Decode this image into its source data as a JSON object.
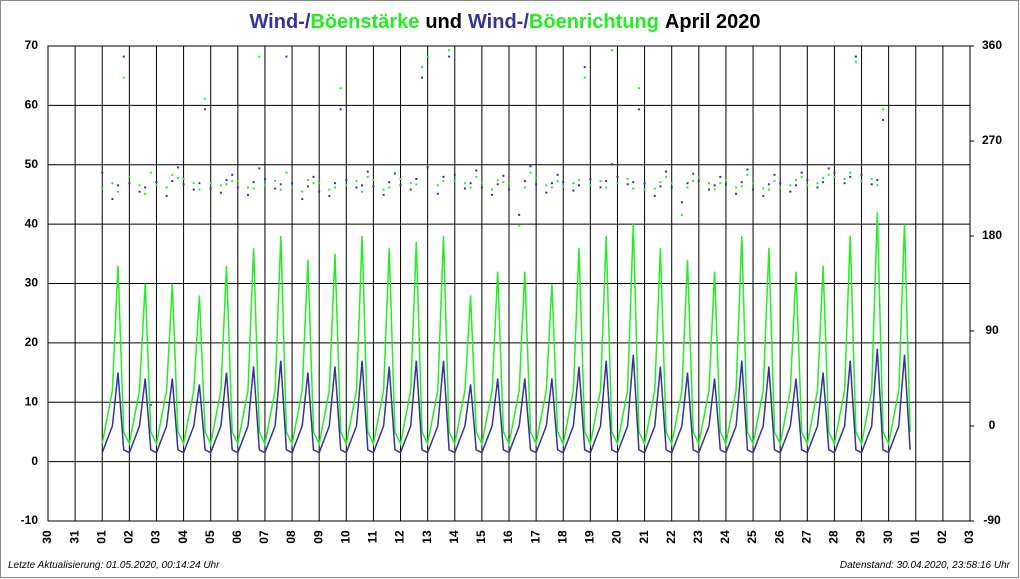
{
  "chart_data": {
    "type": "scatter-line",
    "title_parts": [
      {
        "text": "Wind-/",
        "color": "#333399"
      },
      {
        "text": "Böenstärke",
        "color": "#22ee22"
      },
      {
        "text": "und",
        "color": "#000000"
      },
      {
        "text": "Wind-/",
        "color": "#333399"
      },
      {
        "text": "Böenrichtung",
        "color": "#22ee22"
      },
      {
        "text": "April 2020",
        "color": "#000000"
      }
    ],
    "footer_left": "Letzte Aktualisierung: 01.05.2020, 00:14:24 Uhr",
    "footer_right": "Datenstand: 30.04.2020, 23:58:16 Uhr",
    "grid": true,
    "xlim": [
      0,
      34
    ],
    "xticks": [
      {
        "value": 0,
        "label": "30"
      },
      {
        "value": 1,
        "label": "31"
      },
      {
        "value": 2,
        "label": "01"
      },
      {
        "value": 3,
        "label": "02"
      },
      {
        "value": 4,
        "label": "03"
      },
      {
        "value": 5,
        "label": "04"
      },
      {
        "value": 6,
        "label": "05"
      },
      {
        "value": 7,
        "label": "06"
      },
      {
        "value": 8,
        "label": "07"
      },
      {
        "value": 9,
        "label": "08"
      },
      {
        "value": 10,
        "label": "09"
      },
      {
        "value": 11,
        "label": "10"
      },
      {
        "value": 12,
        "label": "11"
      },
      {
        "value": 13,
        "label": "12"
      },
      {
        "value": 14,
        "label": "13"
      },
      {
        "value": 15,
        "label": "14"
      },
      {
        "value": 16,
        "label": "15"
      },
      {
        "value": 17,
        "label": "16"
      },
      {
        "value": 18,
        "label": "17"
      },
      {
        "value": 19,
        "label": "18"
      },
      {
        "value": 20,
        "label": "19"
      },
      {
        "value": 21,
        "label": "20"
      },
      {
        "value": 22,
        "label": "21"
      },
      {
        "value": 23,
        "label": "22"
      },
      {
        "value": 24,
        "label": "23"
      },
      {
        "value": 25,
        "label": "24"
      },
      {
        "value": 26,
        "label": "25"
      },
      {
        "value": 27,
        "label": "26"
      },
      {
        "value": 28,
        "label": "27"
      },
      {
        "value": 29,
        "label": "28"
      },
      {
        "value": 30,
        "label": "29"
      },
      {
        "value": 31,
        "label": "30"
      },
      {
        "value": 32,
        "label": "01"
      },
      {
        "value": 33,
        "label": "02"
      },
      {
        "value": 34,
        "label": "03"
      }
    ],
    "ylim": [
      -10,
      70
    ],
    "yticks": [
      -10,
      0,
      10,
      20,
      30,
      40,
      50,
      60,
      70
    ],
    "y2lim": [
      -90,
      360
    ],
    "y2ticks": [
      -90,
      0,
      90,
      180,
      270,
      360
    ],
    "x": [
      2,
      2.375,
      2.583,
      2.792,
      3,
      3.375,
      3.583,
      3.792,
      4,
      4.375,
      4.583,
      4.792,
      5,
      5.375,
      5.583,
      5.792,
      6,
      6.375,
      6.583,
      6.792,
      7,
      7.375,
      7.583,
      7.792,
      8,
      8.375,
      8.583,
      8.792,
      9,
      9.375,
      9.583,
      9.792,
      10,
      10.375,
      10.583,
      10.792,
      11,
      11.375,
      11.583,
      11.792,
      12,
      12.375,
      12.583,
      12.792,
      13,
      13.375,
      13.583,
      13.792,
      14,
      14.375,
      14.583,
      14.792,
      15,
      15.375,
      15.583,
      15.792,
      16,
      16.375,
      16.583,
      16.792,
      17,
      17.375,
      17.583,
      17.792,
      18,
      18.375,
      18.583,
      18.792,
      19,
      19.375,
      19.583,
      19.792,
      20,
      20.375,
      20.583,
      20.792,
      21,
      21.375,
      21.583,
      21.792,
      22,
      22.375,
      22.583,
      22.792,
      23,
      23.375,
      23.583,
      23.792,
      24,
      24.375,
      24.583,
      24.792,
      25,
      25.375,
      25.583,
      25.792,
      26,
      26.375,
      26.583,
      26.792,
      27,
      27.375,
      27.583,
      27.792,
      28,
      28.375,
      28.583,
      28.792,
      29,
      29.375,
      29.583,
      29.792,
      30,
      30.375,
      30.583,
      30.792,
      31,
      31.375,
      31.583,
      31.792
    ],
    "series": [
      {
        "name": "Windrichtung",
        "color": "#333399",
        "axis": "y2",
        "style": "dots",
        "values": [
          240,
          215,
          228,
          350,
          230,
          222,
          226,
          20,
          231,
          218,
          232,
          245,
          229,
          224,
          230,
          300,
          225,
          221,
          233,
          238,
          226,
          219,
          231,
          244,
          234,
          225,
          229,
          350,
          230,
          215,
          227,
          236,
          222,
          218,
          230,
          300,
          233,
          226,
          228,
          241,
          227,
          219,
          231,
          239,
          228,
          224,
          234,
          330,
          245,
          220,
          236,
          350,
          238,
          225,
          230,
          242,
          226,
          219,
          229,
          237,
          224,
          200,
          232,
          246,
          229,
          221,
          230,
          238,
          231,
          223,
          228,
          340,
          234,
          226,
          232,
          248,
          236,
          229,
          231,
          300,
          230,
          218,
          227,
          241,
          226,
          212,
          230,
          239,
          232,
          224,
          228,
          236,
          229,
          220,
          231,
          243,
          224,
          218,
          229,
          238,
          230,
          222,
          228,
          240,
          233,
          226,
          231,
          244,
          240,
          230,
          236,
          350,
          238,
          229,
          233,
          290
        ]
      },
      {
        "name": "Böenrichtung",
        "color": "#22ee22",
        "axis": "y2",
        "style": "dots",
        "values": [
          225,
          230,
          222,
          330,
          236,
          228,
          220,
          240,
          228,
          226,
          238,
          235,
          234,
          230,
          224,
          310,
          230,
          228,
          229,
          232,
          232,
          226,
          225,
          350,
          228,
          232,
          224,
          240,
          226,
          222,
          233,
          230,
          230,
          224,
          226,
          320,
          228,
          232,
          222,
          236,
          233,
          224,
          226,
          240,
          234,
          230,
          229,
          340,
          350,
          228,
          232,
          356,
          232,
          230,
          226,
          236,
          230,
          224,
          233,
          231,
          230,
          190,
          226,
          240,
          235,
          228,
          226,
          232,
          227,
          230,
          233,
          330,
          228,
          232,
          226,
          356,
          230,
          234,
          225,
          320,
          224,
          225,
          231,
          236,
          230,
          200,
          226,
          232,
          236,
          230,
          224,
          230,
          233,
          226,
          227,
          238,
          230,
          225,
          224,
          232,
          226,
          228,
          233,
          236,
          228,
          230,
          235,
          238,
          236,
          234,
          240,
          345,
          232,
          234,
          228,
          300
        ]
      },
      {
        "name": "Böenstärke",
        "color": "#22ee22",
        "style": "line",
        "values": [
          3,
          12,
          33,
          5,
          3,
          12,
          30,
          5,
          3,
          12,
          30,
          5,
          3,
          12,
          28,
          5,
          3,
          12,
          33,
          5,
          3,
          12,
          36,
          5,
          3,
          12,
          38,
          5,
          3,
          12,
          34,
          5,
          3,
          12,
          35,
          5,
          3,
          12,
          38,
          5,
          3,
          12,
          36,
          5,
          3,
          12,
          37,
          5,
          3,
          12,
          38,
          5,
          3,
          12,
          28,
          5,
          3,
          12,
          32,
          5,
          3,
          12,
          32,
          5,
          3,
          12,
          30,
          5,
          3,
          12,
          36,
          5,
          3,
          12,
          38,
          5,
          3,
          12,
          40,
          5,
          3,
          12,
          36,
          5,
          3,
          12,
          34,
          5,
          3,
          12,
          32,
          5,
          3,
          12,
          38,
          5,
          3,
          12,
          36,
          5,
          3,
          12,
          32,
          5,
          3,
          12,
          33,
          5,
          3,
          12,
          38,
          5,
          3,
          12,
          42,
          5,
          3,
          12,
          40,
          5
        ]
      },
      {
        "name": "Windstärke",
        "color": "#333399",
        "style": "line",
        "values": [
          1.5,
          6,
          15,
          2,
          1.5,
          6,
          14,
          2,
          1.5,
          6,
          14,
          2,
          1.5,
          6,
          13,
          2,
          1.5,
          6,
          15,
          2,
          1.5,
          6,
          16,
          2,
          1.5,
          6,
          17,
          2,
          1.5,
          6,
          15,
          2,
          1.5,
          6,
          16,
          2,
          1.5,
          6,
          17,
          2,
          1.5,
          6,
          16,
          2,
          1.5,
          6,
          17,
          2,
          1.5,
          6,
          17,
          2,
          1.5,
          6,
          13,
          2,
          1.5,
          6,
          14,
          2,
          1.5,
          6,
          14,
          2,
          1.5,
          6,
          14,
          2,
          1.5,
          6,
          16,
          2,
          1.5,
          6,
          17,
          2,
          1.5,
          6,
          18,
          2,
          1.5,
          6,
          16,
          2,
          1.5,
          6,
          15,
          2,
          1.5,
          6,
          14,
          2,
          1.5,
          6,
          17,
          2,
          1.5,
          6,
          16,
          2,
          1.5,
          6,
          14,
          2,
          1.5,
          6,
          15,
          2,
          1.5,
          6,
          17,
          2,
          1.5,
          6,
          19,
          2,
          1.5,
          6,
          18,
          2
        ]
      }
    ]
  }
}
